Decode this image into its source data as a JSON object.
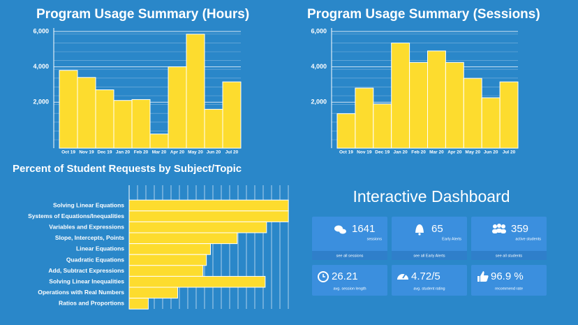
{
  "chart_data": [
    {
      "type": "bar",
      "title": "Program Usage Summary (Hours)",
      "categories": [
        "Oct 19",
        "Nov 19",
        "Dec 19",
        "Jan 20",
        "Feb 20",
        "Mar 20",
        "Apr 20",
        "May 20",
        "Jun 20",
        "Jul 20"
      ],
      "values": [
        3800,
        3400,
        2700,
        2100,
        2150,
        200,
        4000,
        5850,
        1600,
        3150
      ],
      "color": "#fddc2e",
      "ylim": [
        -600,
        6200
      ],
      "yticks": [
        {
          "value": 2000,
          "label": "2,000"
        },
        {
          "value": 4000,
          "label": "4,000"
        },
        {
          "value": 6000,
          "label": "6,000"
        }
      ],
      "grid": true
    },
    {
      "type": "bar",
      "title": "Program Usage Summary (Sessions)",
      "categories": [
        "Oct 19",
        "Nov 19",
        "Dec 19",
        "Jan 20",
        "Feb 20",
        "Mar 20",
        "Apr 20",
        "May 20",
        "Jun 20",
        "Jul 20"
      ],
      "values": [
        1350,
        2800,
        1900,
        5350,
        4250,
        4900,
        4250,
        3350,
        2250,
        3150
      ],
      "color": "#fddc2e",
      "ylim": [
        -600,
        6200
      ],
      "yticks": [
        {
          "value": 2000,
          "label": "2,000"
        },
        {
          "value": 4000,
          "label": "4,000"
        },
        {
          "value": 6000,
          "label": "6,000"
        }
      ],
      "grid": true
    },
    {
      "type": "barh",
      "title": "Percent of Student Requests by Subject/Topic",
      "categories": [
        "Solving Linear Equations",
        "Systems of Equations/Inequalities",
        "Variables and Expressions",
        "Slope, Intercepts, Points",
        "Linear Equations",
        "Quadratic Equations",
        "Add, Subtract Expressions",
        "Solving Linear Inequalities",
        "Operations with Real Numbers",
        "Ratios and Proportions"
      ],
      "values": [
        233,
        233,
        201,
        158,
        119,
        113,
        108,
        199,
        71,
        28
      ],
      "color": "#fddc2e",
      "xlim": [
        0,
        240
      ],
      "grid": true
    }
  ],
  "dashboard": {
    "title": "Interactive Dashboard",
    "cards": [
      {
        "value": "1641",
        "label": "sessions",
        "link": "see all sessions"
      },
      {
        "value": "65",
        "label": "Early Alerts",
        "link": "see all Early Alerts"
      },
      {
        "value": "359",
        "label": "active students",
        "link": "see all students"
      },
      {
        "value": "26.21",
        "label": "avg. session length"
      },
      {
        "value": "4.72/5",
        "label": "avg. student rating"
      },
      {
        "value": "96.9 %",
        "label": "recommend rate"
      }
    ]
  }
}
